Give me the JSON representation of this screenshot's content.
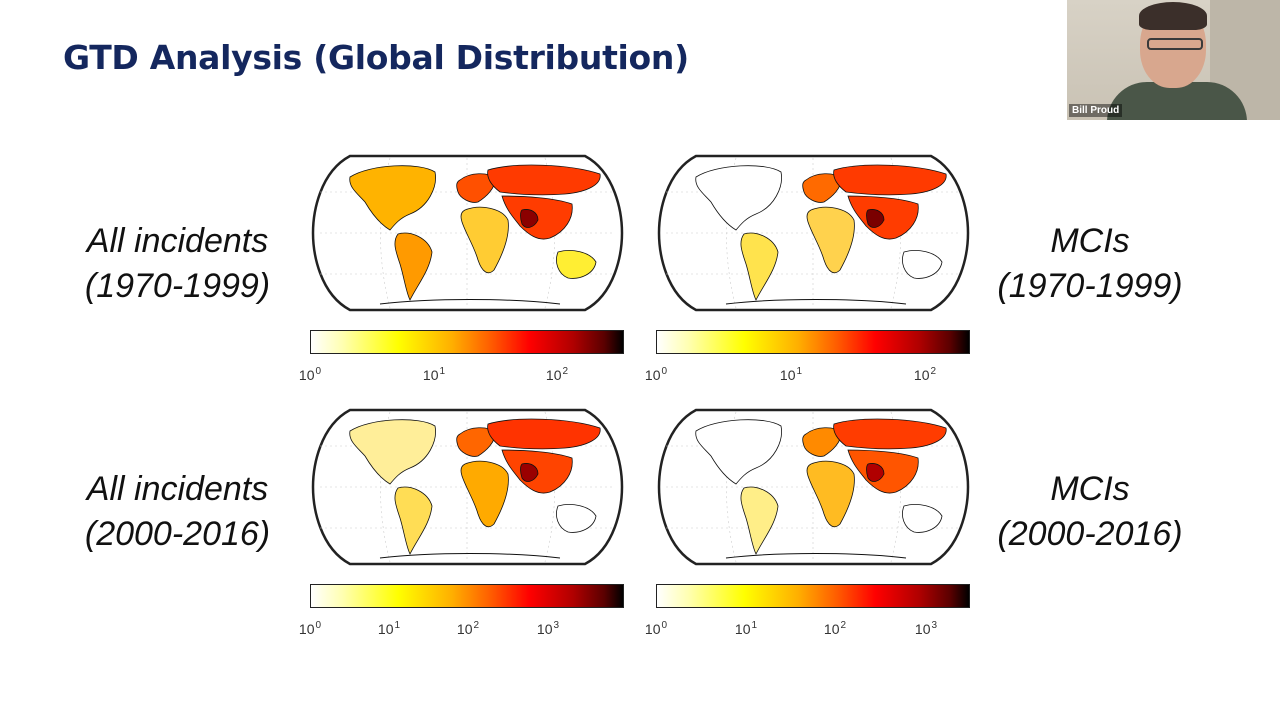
{
  "slide": {
    "title": "GTD Analysis (Global Distribution)",
    "row_labels": [
      {
        "line1": "All incidents",
        "line2": "(1970-1999)"
      },
      {
        "line1": "All incidents",
        "line2": "(2000-2016)"
      }
    ],
    "right_labels": [
      {
        "line1": "MCIs",
        "line2": "(1970-1999)"
      },
      {
        "line1": "MCIs",
        "line2": "(2000-2016)"
      }
    ]
  },
  "chart_data": [
    {
      "type": "heatmap",
      "colormap": "hot (white-yellow-red-black), log scale",
      "colorbar_ticks": [
        {
          "base": "10",
          "exp": "0"
        },
        {
          "base": "10",
          "exp": "1"
        },
        {
          "base": "10",
          "exp": "2"
        }
      ]
    },
    {
      "type": "heatmap",
      "colormap": "hot (white-yellow-red-black), log scale",
      "colorbar_ticks": [
        {
          "base": "10",
          "exp": "0"
        },
        {
          "base": "10",
          "exp": "1"
        },
        {
          "base": "10",
          "exp": "2"
        }
      ]
    },
    {
      "type": "heatmap",
      "colormap": "hot (white-yellow-red-black), log scale",
      "colorbar_ticks": [
        {
          "base": "10",
          "exp": "0"
        },
        {
          "base": "10",
          "exp": "1"
        },
        {
          "base": "10",
          "exp": "2"
        },
        {
          "base": "10",
          "exp": "3"
        }
      ]
    },
    {
      "type": "heatmap",
      "colormap": "hot (white-yellow-red-black), log scale",
      "colorbar_ticks": [
        {
          "base": "10",
          "exp": "0"
        },
        {
          "base": "10",
          "exp": "1"
        },
        {
          "base": "10",
          "exp": "2"
        },
        {
          "base": "10",
          "exp": "3"
        }
      ]
    }
  ],
  "video": {
    "participant_name": "Bill Proud"
  }
}
